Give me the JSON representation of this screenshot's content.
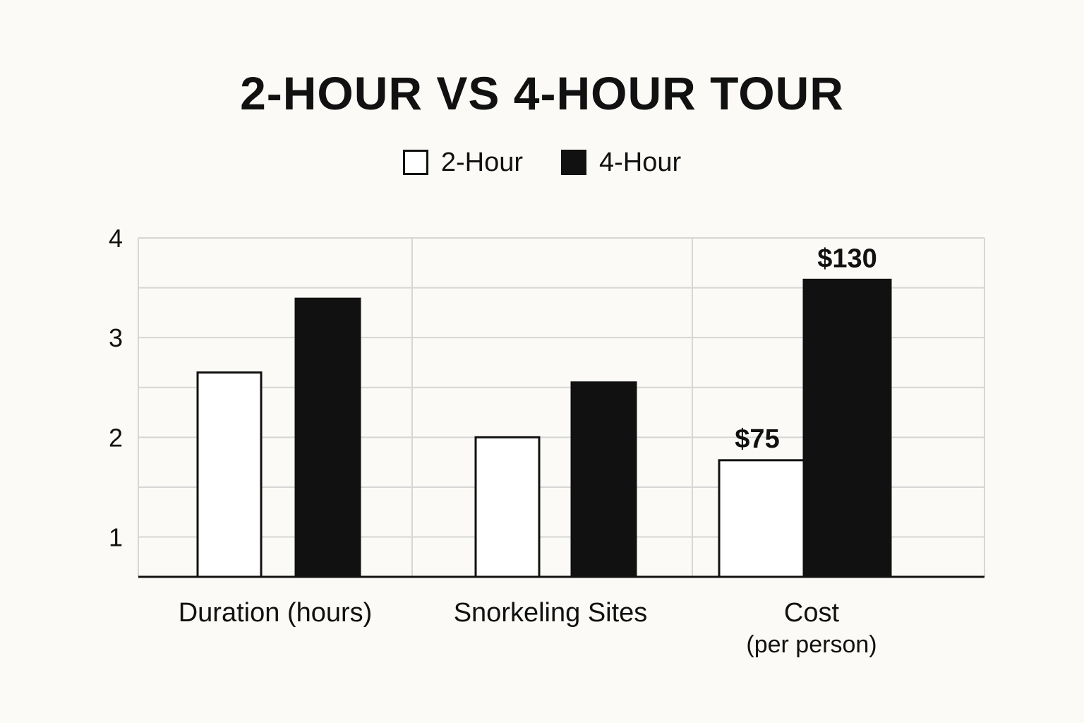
{
  "chart_data": {
    "type": "bar",
    "title": "2-HOUR VS 4-HOUR TOUR",
    "categories": [
      {
        "label": "Duration (hours)",
        "sublabel": ""
      },
      {
        "label": "Snorkeling Sites",
        "sublabel": ""
      },
      {
        "label": "Cost",
        "sublabel": "(per person)"
      }
    ],
    "series": [
      {
        "name": "2-Hour",
        "fill": "#ffffff",
        "stroke": "#111111",
        "values": [
          2.65,
          2.0,
          1.77
        ],
        "data_labels": [
          "",
          "",
          "$75"
        ]
      },
      {
        "name": "4-Hour",
        "fill": "#111111",
        "stroke": "#111111",
        "values": [
          3.39,
          2.55,
          3.58
        ],
        "data_labels": [
          "",
          "",
          "$130"
        ]
      }
    ],
    "y_ticks": [
      "1",
      "2",
      "3",
      "4"
    ],
    "ylim": [
      0.6,
      4
    ],
    "xlabel": "",
    "ylabel": "",
    "grid": true,
    "legend_position": "top-center"
  },
  "colors": {
    "background": "#fbfaf6",
    "ink": "#111111",
    "grid": "#d6d6d6"
  }
}
